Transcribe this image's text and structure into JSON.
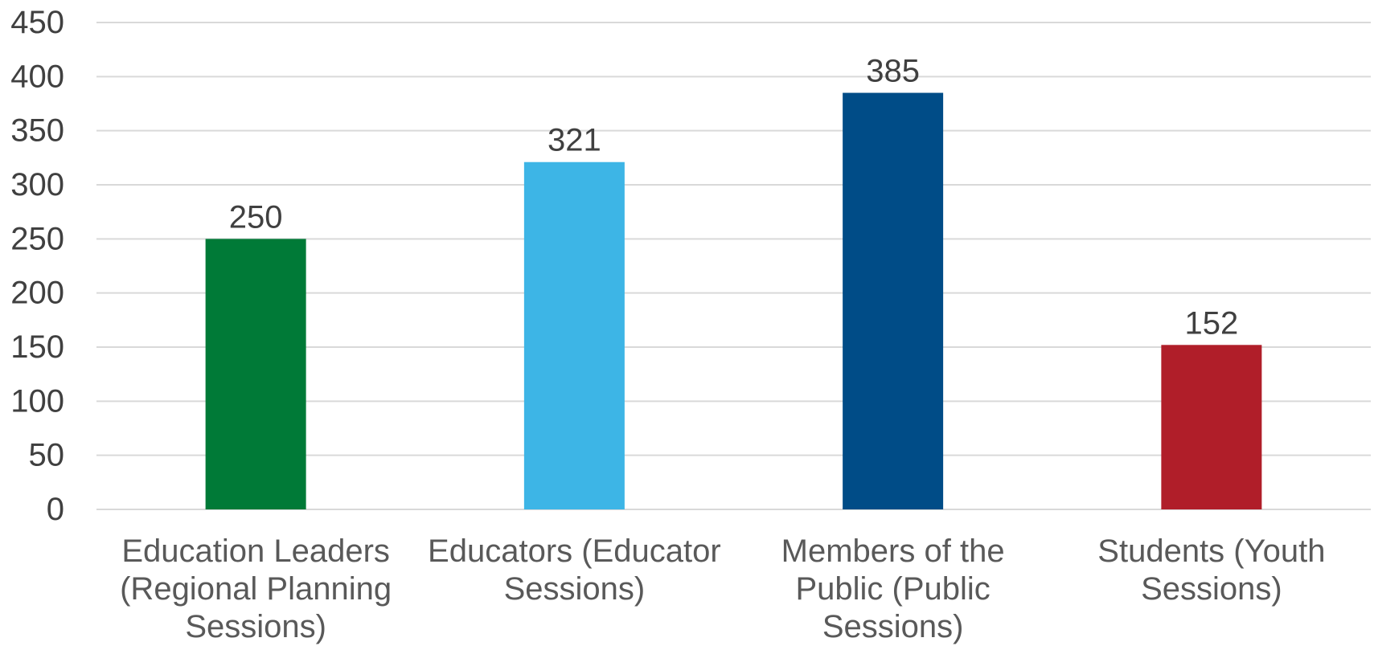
{
  "chart_data": {
    "type": "bar",
    "title": "",
    "xlabel": "",
    "ylabel": "",
    "ylim": [
      0,
      450
    ],
    "yticks": [
      0,
      50,
      100,
      150,
      200,
      250,
      300,
      350,
      400,
      450
    ],
    "grid": true,
    "legend": "none",
    "categories": [
      [
        "Education Leaders",
        "(Regional Planning",
        "Sessions)"
      ],
      [
        "Educators (Educator",
        "Sessions)"
      ],
      [
        "Members of the",
        "Public (Public",
        "Sessions)"
      ],
      [
        "Students (Youth",
        "Sessions)"
      ]
    ],
    "values": [
      250,
      321,
      385,
      152
    ],
    "data_labels": [
      "250",
      "321",
      "385",
      "152"
    ],
    "colors": [
      "#007A37",
      "#3DB5E6",
      "#004C87",
      "#B01E29"
    ]
  }
}
